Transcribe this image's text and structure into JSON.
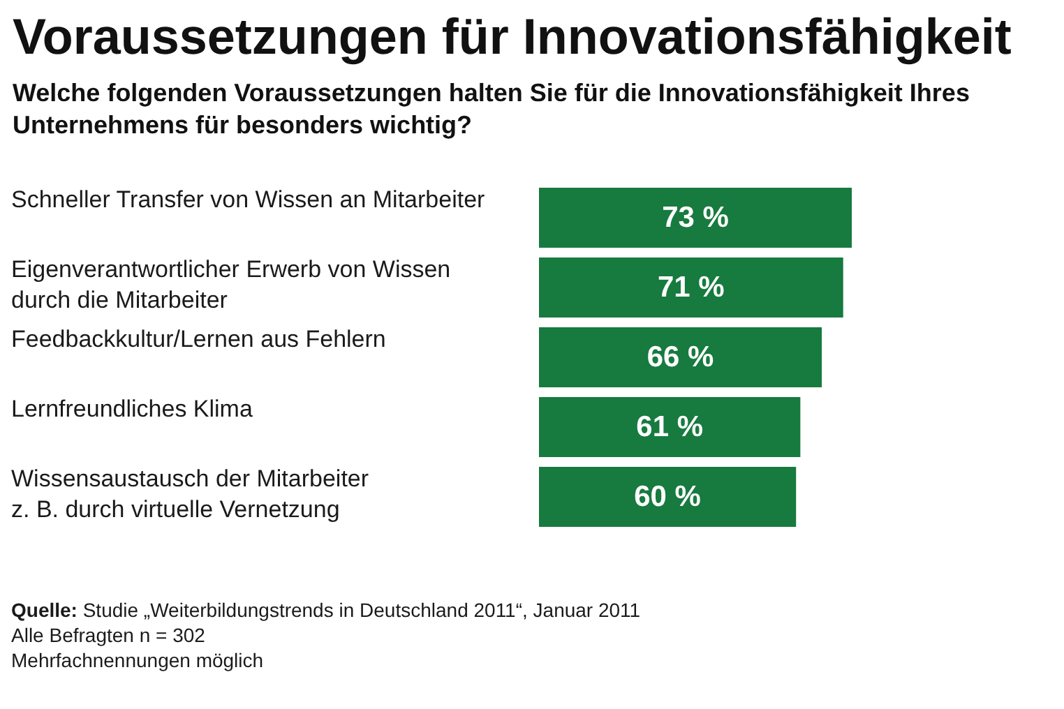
{
  "chart_data": {
    "type": "bar",
    "orientation": "horizontal",
    "title": "Voraussetzungen für Innovationsfähigkeit",
    "subtitle": "Welche folgenden Voraussetzungen halten Sie für die Innovationsfähigkeit Ihres\nUnternehmens für besonders wichtig?",
    "categories": [
      "Schneller Transfer von Wissen an Mitarbeiter",
      "Eigenverantwortlicher Erwerb von Wissen\ndurch die Mitarbeiter",
      "Feedbackkultur/Lernen aus Fehlern",
      "Lernfreundliches Klima",
      "Wissensaustausch der Mitarbeiter\nz. B. durch virtuelle Vernetzung"
    ],
    "values": [
      73,
      71,
      66,
      61,
      60
    ],
    "value_labels": [
      "73 %",
      "71 %",
      "66 %",
      "61 %",
      "60 %"
    ],
    "color": "#177a3f",
    "annotations": [
      "Quelle: Studie „Weiterbildungstrends in Deutschland 2011“, Januar 2011",
      "Alle Befragten n = 302",
      "Mehrfachnennungen möglich"
    ]
  }
}
